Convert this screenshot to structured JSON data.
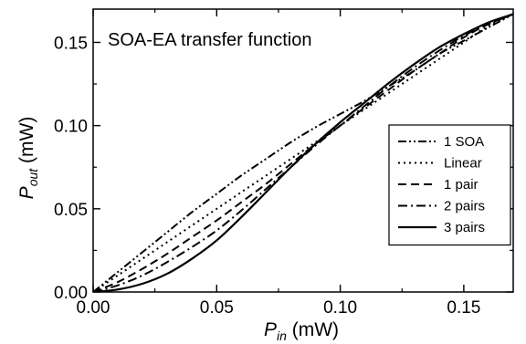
{
  "chart_data": {
    "type": "line",
    "title": "SOA-EA transfer function",
    "xlabel": {
      "main": "P",
      "sub": "in",
      "unit": " (mW)"
    },
    "ylabel": {
      "main": "P",
      "sub": "out",
      "unit": " (mW)"
    },
    "xlim": [
      0,
      0.17
    ],
    "ylim": [
      0,
      0.17
    ],
    "xticks": [
      0.0,
      0.05,
      0.1,
      0.15
    ],
    "yticks": [
      0.0,
      0.05,
      0.1,
      0.15
    ],
    "xtick_labels": [
      "0.00",
      "0.05",
      "0.10",
      "0.15"
    ],
    "ytick_labels": [
      "0.00",
      "0.05",
      "0.10",
      "0.15"
    ],
    "legend_position": "center-right",
    "series": [
      {
        "name": "1 SOA",
        "dash": "dash-dot-dot",
        "x": [
          0,
          0.01,
          0.02,
          0.03,
          0.04,
          0.05,
          0.06,
          0.07,
          0.08,
          0.09,
          0.1,
          0.11,
          0.12,
          0.13,
          0.14,
          0.15,
          0.16,
          0.17
        ],
        "y": [
          0,
          0.012,
          0.024,
          0.036,
          0.048,
          0.059,
          0.07,
          0.08,
          0.09,
          0.099,
          0.107,
          0.115,
          0.124,
          0.133,
          0.143,
          0.151,
          0.159,
          0.167
        ]
      },
      {
        "name": "Linear",
        "dash": "dotted",
        "x": [
          0,
          0.01,
          0.02,
          0.03,
          0.04,
          0.05,
          0.06,
          0.07,
          0.08,
          0.09,
          0.1,
          0.11,
          0.12,
          0.13,
          0.14,
          0.15,
          0.16,
          0.17
        ],
        "y": [
          0,
          0.01,
          0.02,
          0.03,
          0.04,
          0.05,
          0.06,
          0.07,
          0.08,
          0.09,
          0.1,
          0.11,
          0.12,
          0.13,
          0.14,
          0.15,
          0.16,
          0.167
        ]
      },
      {
        "name": "1 pair",
        "dash": "dashed",
        "x": [
          0,
          0.01,
          0.02,
          0.03,
          0.04,
          0.05,
          0.06,
          0.07,
          0.08,
          0.09,
          0.1,
          0.11,
          0.12,
          0.13,
          0.14,
          0.15,
          0.16,
          0.17
        ],
        "y": [
          0,
          0.006,
          0.014,
          0.023,
          0.033,
          0.043,
          0.054,
          0.065,
          0.077,
          0.089,
          0.1,
          0.111,
          0.122,
          0.133,
          0.143,
          0.153,
          0.161,
          0.167
        ]
      },
      {
        "name": "2 pairs",
        "dash": "dash-dot",
        "x": [
          0,
          0.01,
          0.02,
          0.03,
          0.04,
          0.05,
          0.06,
          0.07,
          0.08,
          0.09,
          0.1,
          0.11,
          0.12,
          0.13,
          0.14,
          0.15,
          0.16,
          0.17
        ],
        "y": [
          0,
          0.004,
          0.01,
          0.018,
          0.027,
          0.037,
          0.049,
          0.062,
          0.075,
          0.088,
          0.1,
          0.112,
          0.124,
          0.135,
          0.145,
          0.154,
          0.161,
          0.167
        ]
      },
      {
        "name": "3 pairs",
        "dash": "solid",
        "x": [
          0,
          0.01,
          0.02,
          0.03,
          0.04,
          0.05,
          0.06,
          0.07,
          0.08,
          0.09,
          0.1,
          0.11,
          0.12,
          0.13,
          0.14,
          0.15,
          0.16,
          0.17
        ],
        "y": [
          0,
          0.0015,
          0.005,
          0.011,
          0.02,
          0.031,
          0.045,
          0.06,
          0.075,
          0.089,
          0.102,
          0.114,
          0.126,
          0.137,
          0.147,
          0.155,
          0.162,
          0.167
        ]
      }
    ]
  }
}
